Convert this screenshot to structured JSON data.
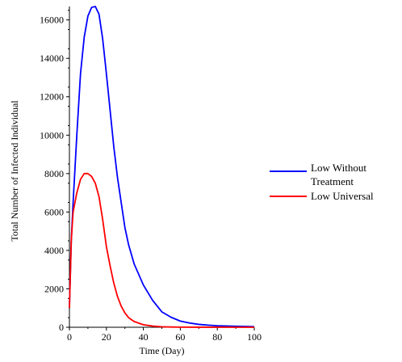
{
  "chart_data": {
    "type": "line",
    "title": "",
    "xlabel": "Time (Day)",
    "ylabel": "Total Number of Infected Individual",
    "xlim": [
      0,
      100
    ],
    "ylim": [
      0,
      16700
    ],
    "x_ticks": [
      0,
      20,
      40,
      60,
      80,
      100
    ],
    "y_ticks": [
      0,
      2000,
      4000,
      6000,
      8000,
      10000,
      12000,
      14000,
      16000
    ],
    "grid": false,
    "legend_position": "right",
    "series": [
      {
        "name": "Low Without Treatment",
        "color": "#0000ff",
        "x": [
          0,
          1,
          2,
          4,
          6,
          8,
          10,
          12,
          14,
          16,
          18,
          20,
          22,
          24,
          26,
          28,
          30,
          32,
          35,
          40,
          45,
          50,
          55,
          60,
          65,
          70,
          75,
          80,
          90,
          100
        ],
        "y": [
          1000,
          4500,
          6500,
          10000,
          13200,
          15100,
          16200,
          16650,
          16700,
          16300,
          15000,
          13200,
          11300,
          9400,
          7800,
          6500,
          5200,
          4300,
          3300,
          2200,
          1400,
          800,
          520,
          320,
          220,
          150,
          110,
          80,
          50,
          30
        ]
      },
      {
        "name": "Low Universal",
        "color": "#ff0000",
        "x": [
          0,
          1,
          2,
          4,
          6,
          8,
          10,
          12,
          14,
          16,
          18,
          20,
          22,
          24,
          26,
          28,
          30,
          32,
          35,
          40,
          45,
          50,
          55,
          60,
          70,
          80,
          90,
          100
        ],
        "y": [
          1000,
          4500,
          6000,
          7000,
          7700,
          8000,
          8000,
          7850,
          7500,
          6800,
          5600,
          4200,
          3200,
          2300,
          1600,
          1100,
          750,
          500,
          300,
          130,
          60,
          25,
          12,
          6,
          3,
          2,
          1,
          0
        ]
      }
    ]
  },
  "legend": {
    "entries": [
      {
        "lines": [
          "Low Without",
          "Treatment"
        ],
        "color": "#0000ff"
      },
      {
        "lines": [
          "Low Universal"
        ],
        "color": "#ff0000"
      }
    ]
  }
}
